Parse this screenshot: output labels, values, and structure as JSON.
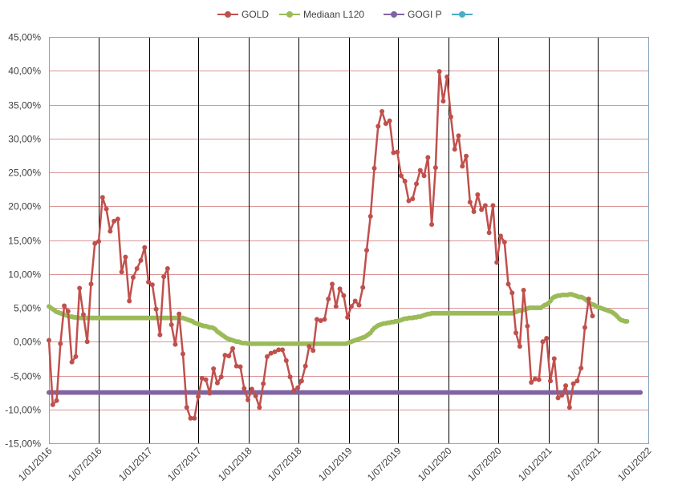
{
  "chart_data": {
    "type": "line",
    "title": "",
    "xlabel": "",
    "ylabel": "",
    "ylim": [
      -0.15,
      0.45
    ],
    "y_ticks": [
      -0.15,
      -0.1,
      -0.05,
      0.0,
      0.05,
      0.1,
      0.15,
      0.2,
      0.25,
      0.3,
      0.35,
      0.4,
      0.45
    ],
    "y_tick_labels": [
      "-15,00%",
      "-10,00%",
      "-5,00%",
      "0,00%",
      "5,00%",
      "10,00%",
      "15,00%",
      "20,00%",
      "25,00%",
      "30,00%",
      "35,00%",
      "40,00%",
      "45,00%"
    ],
    "x_tick_labels": [
      "1/01/2016",
      "1/07/2016",
      "1/01/2017",
      "1/07/2017",
      "1/01/2018",
      "1/07/2018",
      "1/01/2019",
      "1/07/2019",
      "1/01/2020",
      "1/07/2020",
      "1/01/2021",
      "1/07/2021",
      "1/01/2022"
    ],
    "x_range": [
      "2016-01-01",
      "2022-01-01"
    ],
    "grid": {
      "horizontal": true,
      "vertical": true
    },
    "legend_position": "top",
    "colors": {
      "gold": "#c0504d",
      "mediaan": "#9bbb59",
      "gogi": "#8064a2",
      "blank": "#4bacc6",
      "hgrid": "#d99694",
      "vgrid": "#000000",
      "axis": "#86a2b9",
      "text": "#404040"
    },
    "series": [
      {
        "name": "GOLD",
        "x_start": "2016-01-01",
        "step_weeks": 2,
        "values": [
          0.002,
          -0.093,
          -0.087,
          -0.003,
          0.053,
          0.045,
          -0.03,
          -0.022,
          0.079,
          0.04,
          0.0,
          0.085,
          0.145,
          0.148,
          0.213,
          0.196,
          0.163,
          0.178,
          0.181,
          0.103,
          0.125,
          0.06,
          0.095,
          0.108,
          0.12,
          0.139,
          0.088,
          0.084,
          0.048,
          0.01,
          0.096,
          0.108,
          0.025,
          -0.004,
          0.041,
          -0.018,
          -0.097,
          -0.113,
          -0.113,
          -0.081,
          -0.054,
          -0.056,
          -0.076,
          -0.04,
          -0.061,
          -0.052,
          -0.02,
          -0.021,
          -0.01,
          -0.036,
          -0.037,
          -0.069,
          -0.086,
          -0.07,
          -0.08,
          -0.097,
          -0.062,
          -0.022,
          -0.017,
          -0.015,
          -0.012,
          -0.012,
          -0.028,
          -0.052,
          -0.072,
          -0.068,
          -0.058,
          -0.036,
          -0.007,
          -0.013,
          0.033,
          0.031,
          0.033,
          0.063,
          0.085,
          0.052,
          0.078,
          0.068,
          0.036,
          0.052,
          0.06,
          0.054,
          0.08,
          0.135,
          0.185,
          0.256,
          0.318,
          0.34,
          0.322,
          0.326,
          0.279,
          0.28,
          0.245,
          0.237,
          0.208,
          0.211,
          0.233,
          0.253,
          0.245,
          0.272,
          0.173,
          0.257,
          0.399,
          0.355,
          0.391,
          0.332,
          0.284,
          0.304,
          0.259,
          0.274,
          0.206,
          0.192,
          0.217,
          0.195,
          0.201,
          0.161,
          0.201,
          0.117,
          0.156,
          0.147,
          0.085,
          0.072,
          0.013,
          -0.007,
          0.076,
          0.023,
          -0.06,
          -0.055,
          -0.056,
          0.0,
          0.005,
          -0.058,
          -0.025,
          -0.083,
          -0.079,
          -0.065,
          -0.097,
          -0.062,
          -0.058,
          -0.039,
          0.021,
          0.063,
          0.038
        ]
      },
      {
        "name": "Mediaan L120",
        "x_start": "2016-01-01",
        "step_weeks": 1,
        "values": [
          0.052,
          0.05,
          0.048,
          0.046,
          0.044,
          0.043,
          0.042,
          0.041,
          0.04,
          0.039,
          0.038,
          0.037,
          0.037,
          0.036,
          0.036,
          0.035,
          0.035,
          0.035,
          0.035,
          0.035,
          0.035,
          0.035,
          0.035,
          0.035,
          0.035,
          0.035,
          0.035,
          0.035,
          0.035,
          0.035,
          0.035,
          0.035,
          0.035,
          0.035,
          0.035,
          0.035,
          0.035,
          0.035,
          0.035,
          0.035,
          0.035,
          0.035,
          0.035,
          0.035,
          0.035,
          0.035,
          0.035,
          0.035,
          0.035,
          0.035,
          0.035,
          0.035,
          0.035,
          0.035,
          0.035,
          0.035,
          0.035,
          0.035,
          0.035,
          0.035,
          0.035,
          0.035,
          0.035,
          0.035,
          0.035,
          0.035,
          0.035,
          0.035,
          0.035,
          0.035,
          0.035,
          0.034,
          0.033,
          0.032,
          0.031,
          0.03,
          0.028,
          0.027,
          0.026,
          0.025,
          0.024,
          0.023,
          0.023,
          0.022,
          0.021,
          0.021,
          0.02,
          0.018,
          0.015,
          0.013,
          0.011,
          0.009,
          0.007,
          0.005,
          0.004,
          0.003,
          0.002,
          0.001,
          0.0,
          0.0,
          -0.001,
          -0.002,
          -0.002,
          -0.002,
          -0.003,
          -0.003,
          -0.003,
          -0.003,
          -0.003,
          -0.003,
          -0.003,
          -0.003,
          -0.003,
          -0.003,
          -0.003,
          -0.003,
          -0.003,
          -0.003,
          -0.003,
          -0.003,
          -0.003,
          -0.003,
          -0.003,
          -0.003,
          -0.003,
          -0.003,
          -0.003,
          -0.003,
          -0.003,
          -0.003,
          -0.003,
          -0.003,
          -0.003,
          -0.003,
          -0.003,
          -0.003,
          -0.003,
          -0.003,
          -0.003,
          -0.003,
          -0.003,
          -0.003,
          -0.003,
          -0.003,
          -0.003,
          -0.003,
          -0.003,
          -0.003,
          -0.003,
          -0.003,
          -0.003,
          -0.003,
          -0.003,
          -0.003,
          -0.003,
          -0.003,
          -0.002,
          -0.001,
          0.0,
          0.001,
          0.002,
          0.003,
          0.004,
          0.005,
          0.006,
          0.007,
          0.009,
          0.011,
          0.013,
          0.017,
          0.02,
          0.022,
          0.024,
          0.025,
          0.026,
          0.027,
          0.027,
          0.028,
          0.028,
          0.029,
          0.029,
          0.03,
          0.03,
          0.031,
          0.032,
          0.033,
          0.034,
          0.034,
          0.035,
          0.035,
          0.035,
          0.036,
          0.036,
          0.037,
          0.037,
          0.038,
          0.039,
          0.04,
          0.041,
          0.041,
          0.042,
          0.042,
          0.042,
          0.042,
          0.042,
          0.042,
          0.042,
          0.042,
          0.042,
          0.042,
          0.042,
          0.042,
          0.042,
          0.042,
          0.042,
          0.042,
          0.042,
          0.042,
          0.042,
          0.042,
          0.042,
          0.042,
          0.042,
          0.042,
          0.042,
          0.042,
          0.042,
          0.042,
          0.042,
          0.042,
          0.042,
          0.042,
          0.042,
          0.042,
          0.042,
          0.042,
          0.042,
          0.042,
          0.042,
          0.042,
          0.042,
          0.042,
          0.042,
          0.043,
          0.044,
          0.045,
          0.046,
          0.046,
          0.047,
          0.048,
          0.049,
          0.05,
          0.05,
          0.05,
          0.05,
          0.05,
          0.05,
          0.05,
          0.052,
          0.054,
          0.055,
          0.057,
          0.06,
          0.064,
          0.066,
          0.067,
          0.068,
          0.068,
          0.069,
          0.069,
          0.069,
          0.069,
          0.07,
          0.07,
          0.069,
          0.068,
          0.067,
          0.066,
          0.066,
          0.065,
          0.063,
          0.061,
          0.058,
          0.056,
          0.055,
          0.054,
          0.052,
          0.051,
          0.05,
          0.049,
          0.048,
          0.047,
          0.046,
          0.045,
          0.044,
          0.042,
          0.04,
          0.037,
          0.034,
          0.032,
          0.031,
          0.03,
          0.03
        ]
      },
      {
        "name": "GOGI P",
        "x_start": "2016-01-01",
        "step_weeks": 1,
        "constant_value": -0.075,
        "count": 310
      },
      {
        "name": "",
        "values": []
      }
    ]
  }
}
